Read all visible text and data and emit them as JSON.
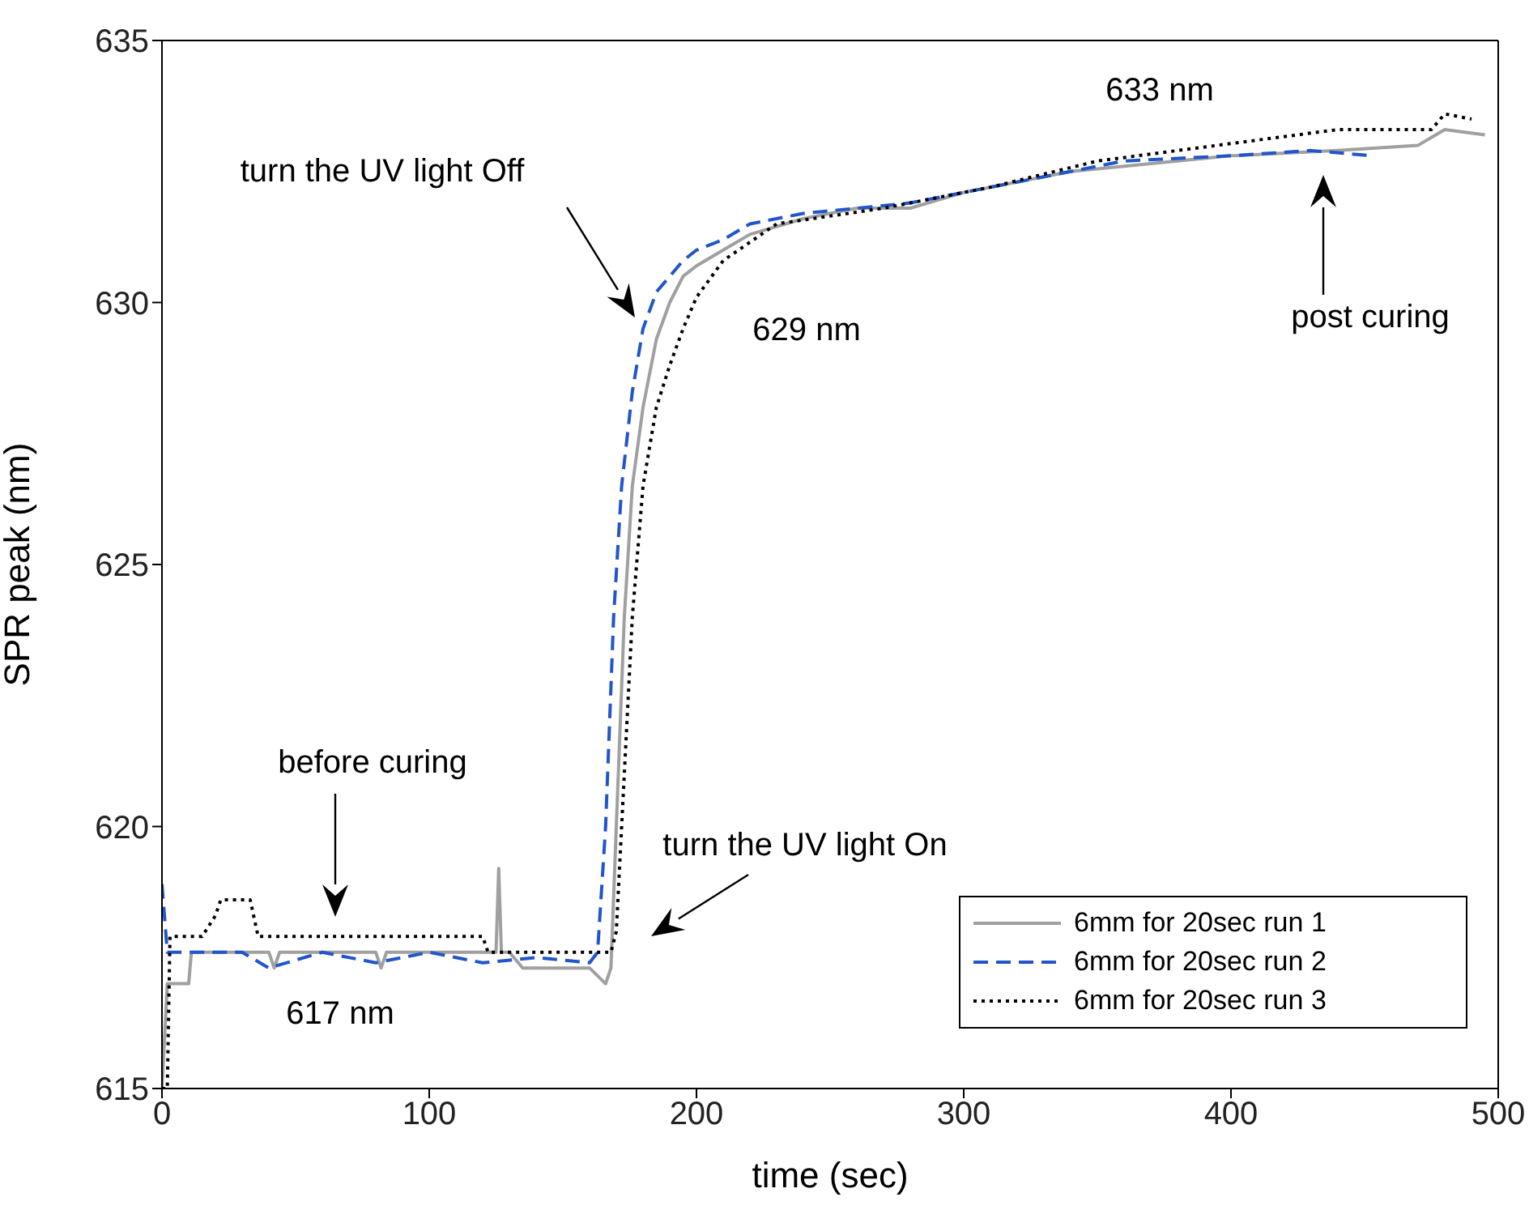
{
  "chart_data": {
    "type": "line",
    "xlabel": "time (sec)",
    "ylabel": "SPR peak (nm)",
    "xlim": [
      0,
      500
    ],
    "ylim": [
      615,
      635
    ],
    "xticks": [
      0,
      100,
      200,
      300,
      400,
      500
    ],
    "yticks": [
      615,
      620,
      625,
      630,
      635
    ],
    "legend": "bottom right",
    "grid": false,
    "marker": "none",
    "annotations": [
      "turn the UV light Off",
      "629 nm",
      "633 nm",
      "post curing",
      "before curing",
      "617 nm",
      "turn the UV light On"
    ],
    "series": [
      {
        "name": "6mm for 20sec run 1",
        "color": "#a0a0a0",
        "line_style": "solid",
        "x": [
          0,
          2,
          3,
          10,
          11,
          40,
          42,
          44,
          80,
          82,
          84,
          120,
          125,
          126,
          127,
          130,
          135,
          140,
          160,
          166,
          168,
          170,
          173,
          176,
          180,
          185,
          190,
          195,
          200,
          210,
          220,
          240,
          260,
          280,
          300,
          320,
          340,
          360,
          400,
          440,
          470,
          480,
          495
        ],
        "values": [
          615,
          617,
          617,
          617,
          617.6,
          617.6,
          617.3,
          617.6,
          617.6,
          617.3,
          617.6,
          617.6,
          617.6,
          619.2,
          617.6,
          617.6,
          617.3,
          617.3,
          617.3,
          617,
          617.3,
          620,
          624,
          626.5,
          628,
          629.3,
          630,
          630.5,
          630.7,
          631,
          631.3,
          631.6,
          631.8,
          631.8,
          632.1,
          632.3,
          632.5,
          632.6,
          632.8,
          632.9,
          633,
          633.3,
          633.2
        ]
      },
      {
        "name": "6mm for 20sec run 2",
        "color": "#2255cc",
        "line_style": "dashed",
        "x": [
          0,
          2,
          4,
          30,
          40,
          60,
          80,
          100,
          120,
          140,
          160,
          163,
          166,
          169,
          172,
          176,
          180,
          185,
          190,
          195,
          200,
          210,
          220,
          240,
          260,
          280,
          300,
          320,
          340,
          360,
          400,
          430,
          453
        ],
        "values": [
          618.9,
          617.6,
          617.6,
          617.6,
          617.3,
          617.6,
          617.4,
          617.6,
          617.4,
          617.5,
          617.4,
          617.6,
          620,
          624,
          626.5,
          628.3,
          629.5,
          630.2,
          630.5,
          630.8,
          631,
          631.2,
          631.5,
          631.7,
          631.8,
          631.9,
          632.1,
          632.3,
          632.5,
          632.7,
          632.8,
          632.9,
          632.8
        ]
      },
      {
        "name": "6mm for 20sec run 3",
        "color": "#000000",
        "line_style": "dotted",
        "x": [
          0,
          1,
          2,
          3,
          15,
          20,
          22,
          33,
          36,
          60,
          90,
          120,
          122,
          150,
          168,
          170,
          172,
          176,
          180,
          185,
          190,
          195,
          200,
          210,
          230,
          270,
          310,
          350,
          380,
          410,
          440,
          475,
          480,
          490
        ],
        "values": [
          615,
          615,
          615,
          617.9,
          617.9,
          618.3,
          618.6,
          618.6,
          617.9,
          617.9,
          617.9,
          617.9,
          617.6,
          617.6,
          617.6,
          618,
          620,
          624,
          626.5,
          628,
          628.8,
          629.5,
          630.1,
          630.8,
          631.5,
          631.8,
          632.2,
          632.7,
          632.9,
          633.1,
          633.3,
          633.3,
          633.6,
          633.5
        ]
      }
    ]
  }
}
